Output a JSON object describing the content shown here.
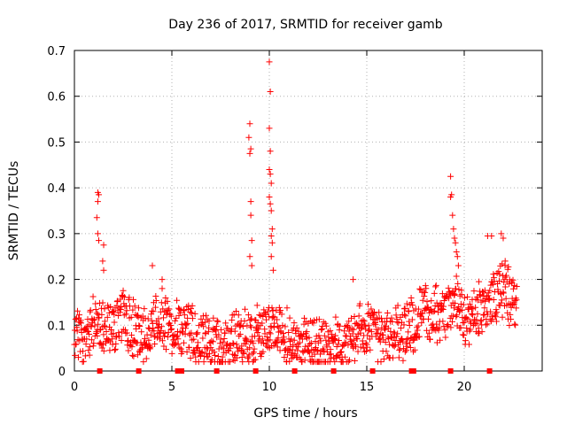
{
  "chart_data": {
    "type": "scatter",
    "title": "Day 236 of 2017, SRMTID for receiver gamb",
    "xlabel": "GPS time / hours",
    "ylabel": "SRMTID / TECUs",
    "xlim": [
      0,
      24
    ],
    "ylim": [
      0,
      0.7
    ],
    "xticks": [
      0,
      5,
      10,
      15,
      20
    ],
    "yticks": [
      0,
      0.1,
      0.2,
      0.3,
      0.4,
      0.5,
      0.6,
      0.7
    ],
    "ytick_labels": [
      "0",
      "0.1",
      "0.2",
      "0.3",
      "0.4",
      "0.5",
      "0.6",
      "0.7"
    ],
    "grid": true,
    "marker": "+",
    "series_color": "#ff0000",
    "background_trend": [
      [
        0.0,
        0.08
      ],
      [
        0.5,
        0.06
      ],
      [
        1.0,
        0.1
      ],
      [
        1.5,
        0.09
      ],
      [
        2.0,
        0.1
      ],
      [
        2.5,
        0.11
      ],
      [
        3.0,
        0.09
      ],
      [
        3.5,
        0.08
      ],
      [
        4.0,
        0.1
      ],
      [
        4.5,
        0.12
      ],
      [
        5.0,
        0.1
      ],
      [
        5.5,
        0.09
      ],
      [
        6.0,
        0.08
      ],
      [
        6.5,
        0.07
      ],
      [
        7.0,
        0.06
      ],
      [
        7.5,
        0.05
      ],
      [
        8.0,
        0.06
      ],
      [
        8.5,
        0.08
      ],
      [
        9.0,
        0.07
      ],
      [
        9.5,
        0.08
      ],
      [
        10.0,
        0.1
      ],
      [
        10.5,
        0.09
      ],
      [
        11.0,
        0.07
      ],
      [
        11.5,
        0.06
      ],
      [
        12.0,
        0.06
      ],
      [
        12.5,
        0.05
      ],
      [
        13.0,
        0.06
      ],
      [
        13.5,
        0.05
      ],
      [
        14.0,
        0.06
      ],
      [
        14.5,
        0.08
      ],
      [
        15.0,
        0.09
      ],
      [
        15.5,
        0.08
      ],
      [
        16.0,
        0.07
      ],
      [
        16.5,
        0.08
      ],
      [
        17.0,
        0.09
      ],
      [
        17.5,
        0.11
      ],
      [
        18.0,
        0.13
      ],
      [
        18.5,
        0.12
      ],
      [
        19.0,
        0.13
      ],
      [
        19.5,
        0.16
      ],
      [
        20.0,
        0.1
      ],
      [
        20.5,
        0.12
      ],
      [
        21.0,
        0.14
      ],
      [
        21.5,
        0.16
      ],
      [
        22.0,
        0.18
      ],
      [
        22.7,
        0.15
      ]
    ],
    "notable_points": [
      [
        1.2,
        0.39
      ],
      [
        1.25,
        0.385
      ],
      [
        1.2,
        0.37
      ],
      [
        1.15,
        0.335
      ],
      [
        1.2,
        0.3
      ],
      [
        1.25,
        0.285
      ],
      [
        1.5,
        0.275
      ],
      [
        1.45,
        0.24
      ],
      [
        1.5,
        0.22
      ],
      [
        4.0,
        0.23
      ],
      [
        4.5,
        0.2
      ],
      [
        9.0,
        0.54
      ],
      [
        8.95,
        0.51
      ],
      [
        9.05,
        0.485
      ],
      [
        9.0,
        0.475
      ],
      [
        9.05,
        0.37
      ],
      [
        9.05,
        0.34
      ],
      [
        9.1,
        0.285
      ],
      [
        9.0,
        0.25
      ],
      [
        9.1,
        0.23
      ],
      [
        10.0,
        0.675
      ],
      [
        10.05,
        0.61
      ],
      [
        10.0,
        0.53
      ],
      [
        10.05,
        0.48
      ],
      [
        10.0,
        0.44
      ],
      [
        10.05,
        0.43
      ],
      [
        10.1,
        0.41
      ],
      [
        10.0,
        0.38
      ],
      [
        10.05,
        0.365
      ],
      [
        10.1,
        0.35
      ],
      [
        10.15,
        0.31
      ],
      [
        10.1,
        0.295
      ],
      [
        10.15,
        0.28
      ],
      [
        10.1,
        0.25
      ],
      [
        10.2,
        0.22
      ],
      [
        14.3,
        0.2
      ],
      [
        19.3,
        0.425
      ],
      [
        19.35,
        0.385
      ],
      [
        19.3,
        0.38
      ],
      [
        19.4,
        0.34
      ],
      [
        19.45,
        0.31
      ],
      [
        19.5,
        0.29
      ],
      [
        19.55,
        0.28
      ],
      [
        19.6,
        0.26
      ],
      [
        19.65,
        0.25
      ],
      [
        19.7,
        0.23
      ],
      [
        21.2,
        0.295
      ],
      [
        21.4,
        0.295
      ],
      [
        21.9,
        0.3
      ],
      [
        22.0,
        0.29
      ],
      [
        22.1,
        0.24
      ]
    ],
    "baseline_points_x": [
      1.3,
      3.3,
      5.3,
      5.5,
      7.3,
      9.3,
      11.3,
      13.3,
      15.3,
      17.3,
      17.4,
      19.3,
      21.3
    ]
  }
}
